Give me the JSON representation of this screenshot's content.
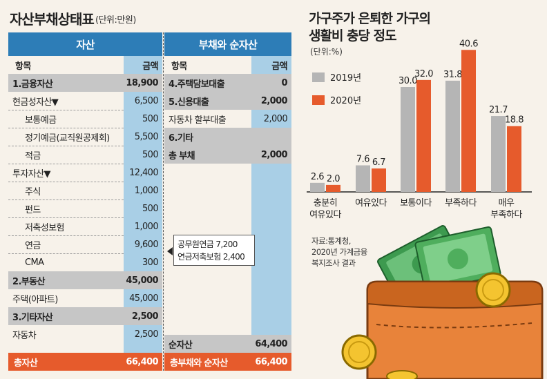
{
  "balance_sheet": {
    "title": "자산부채상태표",
    "unit": "(단위:만원)",
    "assets_header": "자산",
    "liabilities_header": "부채와 순자산",
    "col_item": "항목",
    "col_amount": "금액",
    "assets": [
      {
        "label": "1.금융자산",
        "value": "18,900",
        "style": "hl"
      },
      {
        "label": "현금성자산▼",
        "value": "6,500",
        "style": "sub"
      },
      {
        "label": "보통예금",
        "value": "500",
        "style": "indent"
      },
      {
        "label": "정기예금(교직원공제회)",
        "value": "5,500",
        "style": "indent"
      },
      {
        "label": "적금",
        "value": "500",
        "style": "indent"
      },
      {
        "label": "투자자산▼",
        "value": "12,400",
        "style": "sub"
      },
      {
        "label": "주식",
        "value": "1,000",
        "style": "indent"
      },
      {
        "label": "펀드",
        "value": "500",
        "style": "indent"
      },
      {
        "label": "저축성보험",
        "value": "1,000",
        "style": "indent"
      },
      {
        "label": "연금",
        "value": "9,600",
        "style": "indent"
      },
      {
        "label": "CMA",
        "value": "300",
        "style": "indent"
      },
      {
        "label": "2.부동산",
        "value": "45,000",
        "style": "hl"
      },
      {
        "label": "주택(아파트)",
        "value": "45,000",
        "style": "sub"
      },
      {
        "label": "3.기타자산",
        "value": "2,500",
        "style": "hl"
      },
      {
        "label": "자동차",
        "value": "2,500",
        "style": "sub"
      }
    ],
    "assets_total": {
      "label": "총자산",
      "value": "66,400"
    },
    "liabilities": [
      {
        "label": "4.주택담보대출",
        "value": "0",
        "style": "hl"
      },
      {
        "label": "5.신용대출",
        "value": "2,000",
        "style": "hl"
      },
      {
        "label": "자동차 할부대출",
        "value": "2,000",
        "style": "sub"
      },
      {
        "label": "6.기타",
        "value": "",
        "style": "hl"
      },
      {
        "label": "총 부채",
        "value": "2,000",
        "style": "hl"
      }
    ],
    "net_worth": {
      "label": "순자산",
      "value": "64,400"
    },
    "liab_total": {
      "label": "총부채와 순자산",
      "value": "66,400"
    },
    "callout": {
      "line1": "공무원연금 7,200",
      "line2": "연금저축보험 2,400"
    }
  },
  "chart": {
    "title_line1": "가구주가 은퇴한 가구의",
    "title_line2": "생활비 충당 정도",
    "unit": "(단위:%)",
    "legend_2019": "2019년",
    "legend_2020": "2020년",
    "source_line1": "자료:통계청,",
    "source_line2": "2020년 가계금융",
    "source_line3": "복지조사 결과"
  },
  "colors": {
    "accent_blue": "#2d7db7",
    "light_blue": "#a9cfe6",
    "orange": "#e65b2c",
    "gray": "#b5b5b5"
  },
  "chart_data": {
    "type": "bar",
    "categories": [
      "충분히\n여유있다",
      "여유있다",
      "보통이다",
      "부족하다",
      "매우\n부족하다"
    ],
    "series": [
      {
        "name": "2019년",
        "values": [
          2.6,
          7.6,
          30.0,
          31.8,
          21.7
        ],
        "labels": [
          "2.6",
          "7.6",
          "30.0",
          "31.8",
          "21.7"
        ],
        "color": "#b5b5b5"
      },
      {
        "name": "2020년",
        "values": [
          2.0,
          6.7,
          32.0,
          40.6,
          18.8
        ],
        "labels": [
          "2.0",
          "6.7",
          "32.0",
          "40.6",
          "18.8"
        ],
        "color": "#e65b2c"
      }
    ],
    "ylim": [
      0,
      45
    ],
    "title": "가구주가 은퇴한 가구의 생활비 충당 정도",
    "xlabel": "",
    "ylabel": "",
    "legend": "top-left"
  }
}
